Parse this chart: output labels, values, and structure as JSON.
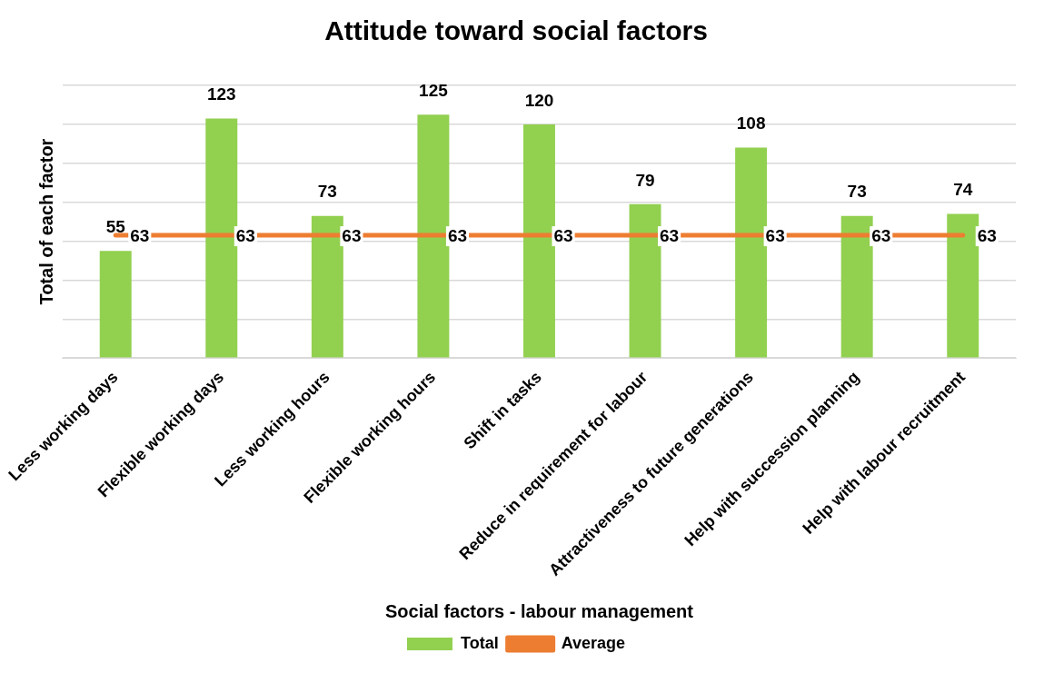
{
  "chart_data": {
    "type": "bar",
    "title": "Attitude toward social factors",
    "xlabel": "Social factors - labour management",
    "ylabel": "Total of each factor",
    "categories": [
      "Less working days",
      "Flexible working days",
      "Less working hours",
      "Flexible working hours",
      "Shift in tasks",
      "Reduce in requirement for labour",
      "Attractiveness to future generations",
      "Help with succession planning",
      "Help with labour recruitment"
    ],
    "series": [
      {
        "name": "Total",
        "color": "#92d050",
        "values": [
          55,
          123,
          73,
          125,
          120,
          79,
          108,
          73,
          74
        ]
      },
      {
        "name": "Average",
        "type": "line",
        "color": "#ed7d31",
        "values": [
          63,
          63,
          63,
          63,
          63,
          63,
          63,
          63,
          63
        ]
      }
    ],
    "ylim": [
      0,
      140
    ],
    "yticks": [
      {
        "value": 0,
        "label": null
      },
      {
        "value": 20,
        "label": null
      },
      {
        "value": 40,
        "label": null
      },
      {
        "value": 60,
        "label": null
      },
      {
        "value": 80,
        "label": null
      },
      {
        "value": 100,
        "label": null
      },
      {
        "value": 120,
        "label": null
      },
      {
        "value": 140,
        "label": null
      }
    ],
    "tick_labels": "x",
    "grid": "y",
    "legend": "bottom",
    "data_labels": true,
    "marker": "none"
  }
}
